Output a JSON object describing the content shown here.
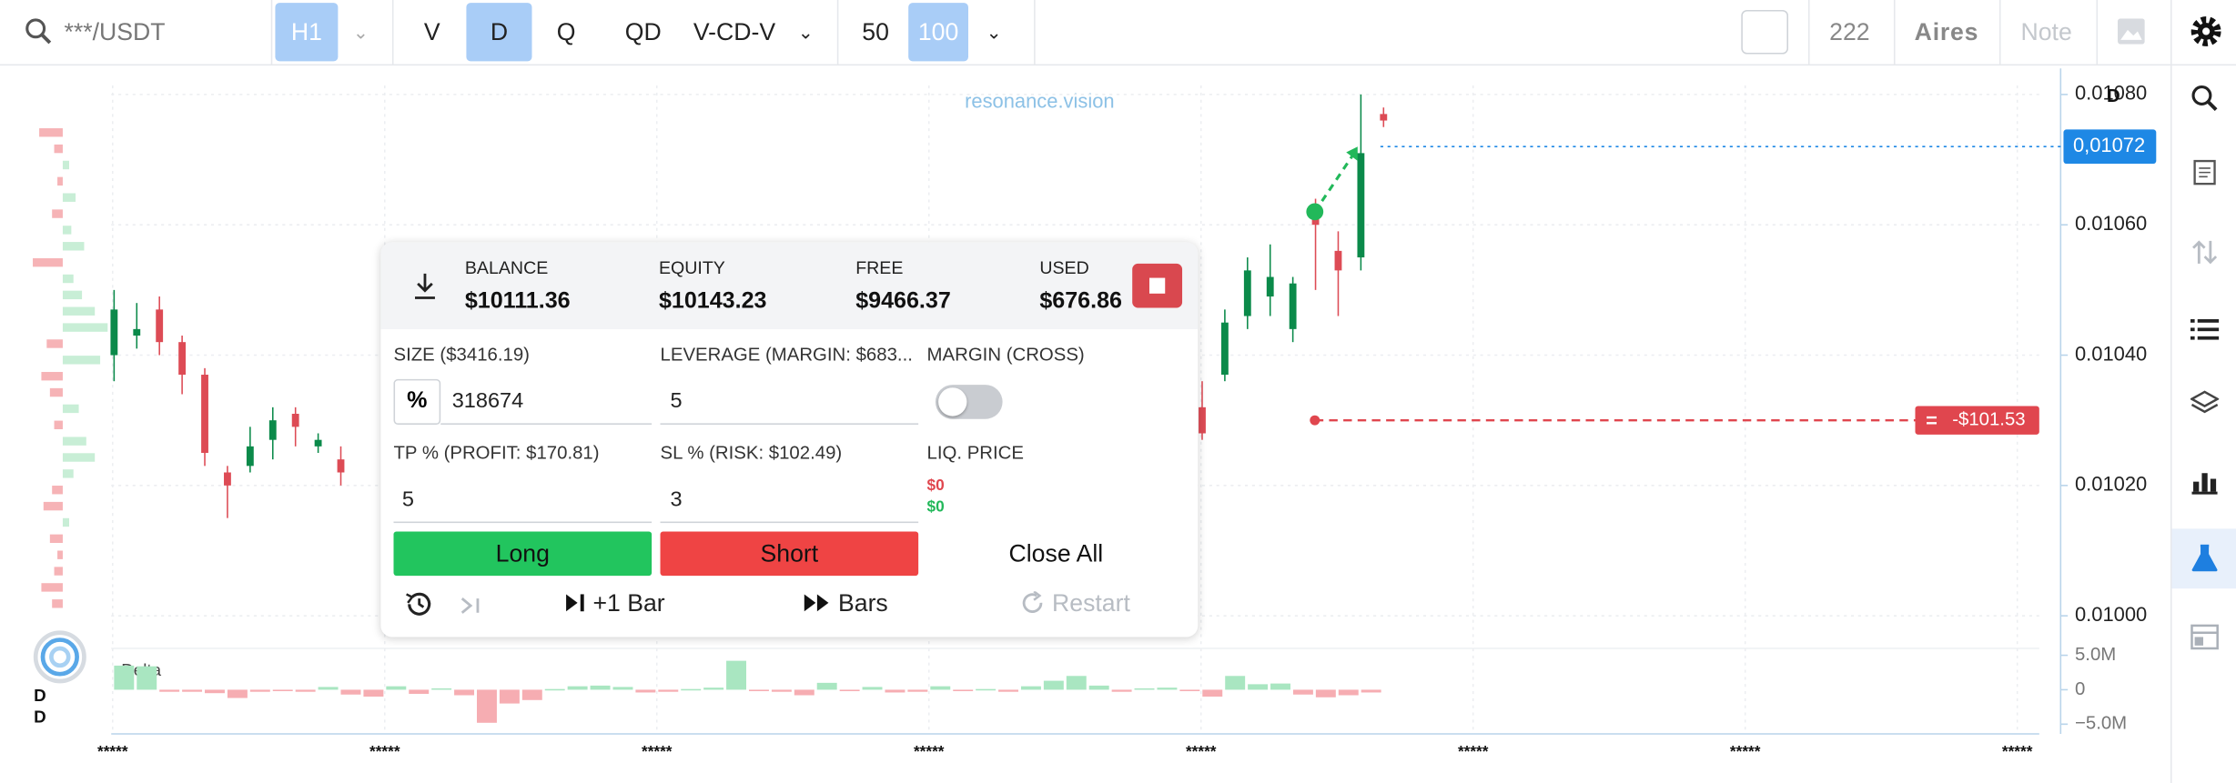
{
  "toolbar": {
    "symbol": "***/USDT",
    "interval": "H1",
    "views": [
      "V",
      "D",
      "Q",
      "QD"
    ],
    "active_view": "D",
    "layout": "V-CD-V",
    "counts": [
      50,
      100
    ],
    "active_count": 100,
    "counter": 222,
    "user": "Aires",
    "note": "Note"
  },
  "chart": {
    "watermark": "resonance.vision",
    "ylim": [
      0.00995,
      0.01084
    ],
    "yticks": [
      {
        "value": 0.0108,
        "label": "0.01080"
      },
      {
        "value": 0.0106,
        "label": "0.01060"
      },
      {
        "value": 0.0104,
        "label": "0.01040"
      },
      {
        "value": 0.0102,
        "label": "0.01020"
      },
      {
        "value": 0.01,
        "label": "0.01000"
      }
    ],
    "last_price": {
      "value": 0.01072,
      "label": "0,01072"
    },
    "x_labels": [
      "*****",
      "*****",
      "*****",
      "*****",
      "*****",
      "*****",
      "*****",
      "*****"
    ],
    "candles_left": [
      {
        "open": 0.0104,
        "high": 0.0105,
        "low": 0.01036,
        "close": 0.01047
      },
      {
        "open": 0.01043,
        "high": 0.01048,
        "low": 0.01041,
        "close": 0.01044
      },
      {
        "open": 0.01047,
        "high": 0.01049,
        "low": 0.0104,
        "close": 0.01042
      },
      {
        "open": 0.01042,
        "high": 0.01043,
        "low": 0.01034,
        "close": 0.01037
      },
      {
        "open": 0.01037,
        "high": 0.01038,
        "low": 0.01023,
        "close": 0.01025
      },
      {
        "open": 0.01022,
        "high": 0.01023,
        "low": 0.01015,
        "close": 0.0102
      },
      {
        "open": 0.01023,
        "high": 0.01029,
        "low": 0.01022,
        "close": 0.01026
      },
      {
        "open": 0.01027,
        "high": 0.01032,
        "low": 0.01024,
        "close": 0.0103
      },
      {
        "open": 0.01031,
        "high": 0.01032,
        "low": 0.01026,
        "close": 0.01029
      },
      {
        "open": 0.01026,
        "high": 0.01028,
        "low": 0.01025,
        "close": 0.01027
      },
      {
        "open": 0.01024,
        "high": 0.01026,
        "low": 0.0102,
        "close": 0.01022
      }
    ],
    "candles_right": [
      {
        "open": 0.01032,
        "high": 0.01036,
        "low": 0.01027,
        "close": 0.01028
      },
      {
        "open": 0.01037,
        "high": 0.01047,
        "low": 0.01036,
        "close": 0.01045
      },
      {
        "open": 0.01046,
        "high": 0.01055,
        "low": 0.01044,
        "close": 0.01053
      },
      {
        "open": 0.01049,
        "high": 0.01057,
        "low": 0.01046,
        "close": 0.01052
      },
      {
        "open": 0.01044,
        "high": 0.01052,
        "low": 0.01042,
        "close": 0.01051
      },
      {
        "open": 0.01061,
        "high": 0.01064,
        "low": 0.0105,
        "close": 0.0106
      },
      {
        "open": 0.01056,
        "high": 0.01059,
        "low": 0.01046,
        "close": 0.01053
      },
      {
        "open": 0.01055,
        "high": 0.0108,
        "low": 0.01053,
        "close": 0.01071
      },
      {
        "open": 0.01077,
        "high": 0.01078,
        "low": 0.01075,
        "close": 0.01076
      }
    ],
    "trade": {
      "entry": 0.01062,
      "stop": 0.0103,
      "pnl": "-$101.53"
    },
    "corner_marks": [
      "D",
      "D",
      "D"
    ],
    "volume_profile": [
      -0.22,
      -0.08,
      0.06,
      -0.05,
      0.12,
      -0.1,
      0.08,
      0.2,
      -0.28,
      0.1,
      0.18,
      0.3,
      0.42,
      -0.15,
      0.35,
      -0.2,
      -0.12,
      0.15,
      -0.08,
      0.22,
      0.3,
      0.1,
      -0.1,
      -0.18,
      0.06,
      -0.12,
      -0.05,
      -0.08,
      -0.2,
      -0.1
    ],
    "delta": {
      "title": "Delta",
      "ylim": [
        -6000000,
        6000000
      ],
      "yticks": [
        {
          "value": 5000000,
          "label": "5.0M"
        },
        0,
        {
          "value": -5000000,
          "label": "−5.0M"
        }
      ],
      "values": [
        3500000,
        3400000,
        -300000,
        -300000,
        -500000,
        -1200000,
        -300000,
        -200000,
        -300000,
        400000,
        -700000,
        -1000000,
        500000,
        -600000,
        200000,
        -800000,
        -4800000,
        -2000000,
        -1500000,
        100000,
        500000,
        600000,
        400000,
        -400000,
        -300000,
        100000,
        300000,
        4200000,
        -200000,
        -300000,
        -800000,
        1000000,
        -200000,
        400000,
        -400000,
        -300000,
        500000,
        -200000,
        100000,
        -300000,
        500000,
        1300000,
        2000000,
        600000,
        -300000,
        200000,
        300000,
        -100000,
        -1000000,
        2000000,
        800000,
        900000,
        -700000,
        -1100000,
        -800000,
        -400000
      ]
    }
  },
  "panel": {
    "stats": [
      {
        "label": "BALANCE",
        "value": "$10111.36"
      },
      {
        "label": "EQUITY",
        "value": "$10143.23"
      },
      {
        "label": "FREE",
        "value": "$9466.37"
      },
      {
        "label": "USED",
        "value": "$676.86"
      }
    ],
    "size": {
      "label": "SIZE ($3416.19)",
      "unit": "%",
      "value": 318674
    },
    "leverage": {
      "label": "LEVERAGE (MARGIN: $683...",
      "value": 5
    },
    "margin": {
      "label": "MARGIN (CROSS)",
      "enabled": false
    },
    "tp": {
      "label": "TP % (PROFIT: $170.81)",
      "value": 5
    },
    "sl": {
      "label": "SL % (RISK: $102.49)",
      "value": 3
    },
    "liq": {
      "label": "LIQ. PRICE",
      "values": [
        "$0",
        "$0"
      ]
    },
    "actions": [
      "Long",
      "Short",
      "Close All"
    ],
    "playback": [
      "+1 Bar",
      "Bars",
      "Restart"
    ]
  }
}
